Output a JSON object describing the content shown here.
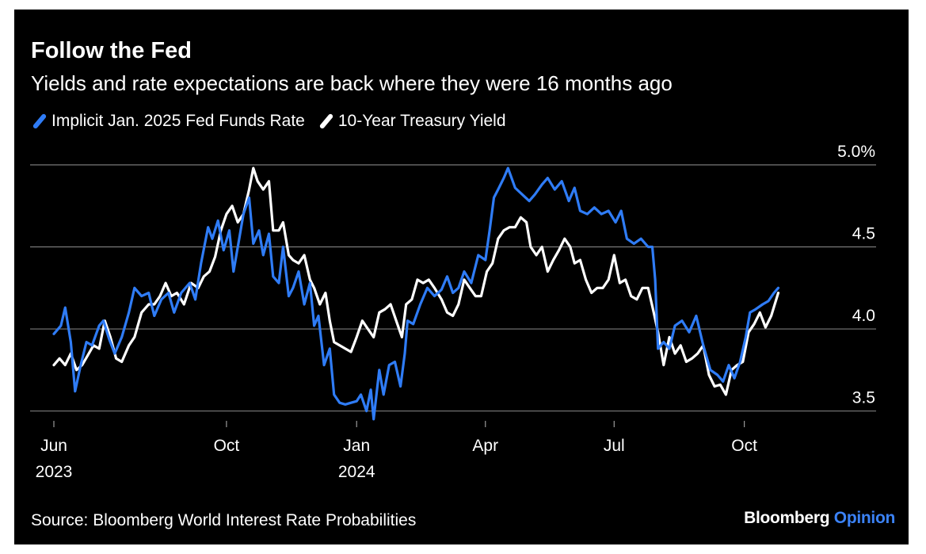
{
  "chart_data": {
    "type": "line",
    "title": "Follow the Fed",
    "subtitle": "Yields and rate expectations are back where they were 16 months ago",
    "source": "Source: Bloomberg World Interest Rate Probabilities",
    "brand": {
      "main": "Bloomberg",
      "accent": "Opinion"
    },
    "ylim": [
      3.44,
      5.0
    ],
    "y_ticks": [
      {
        "value": 5.0,
        "label": "5.0%"
      },
      {
        "value": 4.5,
        "label": "4.5"
      },
      {
        "value": 4.0,
        "label": "4.0"
      },
      {
        "value": 3.5,
        "label": "3.5"
      }
    ],
    "x_range": [
      "2023-06-01",
      "2024-11-15"
    ],
    "x_ticks": [
      {
        "date": "2023-06-01",
        "label": "Jun",
        "year": "2023"
      },
      {
        "date": "2023-10-01",
        "label": "Oct",
        "year": ""
      },
      {
        "date": "2024-01-01",
        "label": "Jan",
        "year": "2024"
      },
      {
        "date": "2024-04-01",
        "label": "Apr",
        "year": ""
      },
      {
        "date": "2024-07-01",
        "label": "Jul",
        "year": ""
      },
      {
        "date": "2024-10-01",
        "label": "Oct",
        "year": ""
      }
    ],
    "legend_position": "top-left",
    "grid": "horizontal",
    "series": [
      {
        "name": "Implicit Jan. 2025 Fed Funds Rate",
        "color": "#2f7cf6",
        "points": [
          [
            "2023-06-01",
            3.97
          ],
          [
            "2023-06-06",
            4.02
          ],
          [
            "2023-06-09",
            4.13
          ],
          [
            "2023-06-13",
            3.92
          ],
          [
            "2023-06-16",
            3.62
          ],
          [
            "2023-06-20",
            3.78
          ],
          [
            "2023-06-24",
            3.92
          ],
          [
            "2023-06-28",
            3.9
          ],
          [
            "2023-07-03",
            4.02
          ],
          [
            "2023-07-06",
            4.05
          ],
          [
            "2023-07-10",
            3.94
          ],
          [
            "2023-07-14",
            3.85
          ],
          [
            "2023-07-19",
            3.95
          ],
          [
            "2023-07-24",
            4.1
          ],
          [
            "2023-07-28",
            4.25
          ],
          [
            "2023-08-02",
            4.2
          ],
          [
            "2023-08-07",
            4.22
          ],
          [
            "2023-08-11",
            4.08
          ],
          [
            "2023-08-16",
            4.18
          ],
          [
            "2023-08-21",
            4.22
          ],
          [
            "2023-08-25",
            4.1
          ],
          [
            "2023-08-30",
            4.22
          ],
          [
            "2023-09-05",
            4.28
          ],
          [
            "2023-09-09",
            4.18
          ],
          [
            "2023-09-13",
            4.4
          ],
          [
            "2023-09-18",
            4.62
          ],
          [
            "2023-09-21",
            4.55
          ],
          [
            "2023-09-25",
            4.66
          ],
          [
            "2023-09-29",
            4.48
          ],
          [
            "2023-10-03",
            4.6
          ],
          [
            "2023-10-06",
            4.35
          ],
          [
            "2023-10-10",
            4.55
          ],
          [
            "2023-10-13",
            4.7
          ],
          [
            "2023-10-17",
            4.8
          ],
          [
            "2023-10-20",
            4.52
          ],
          [
            "2023-10-24",
            4.6
          ],
          [
            "2023-10-27",
            4.45
          ],
          [
            "2023-10-31",
            4.58
          ],
          [
            "2023-11-03",
            4.32
          ],
          [
            "2023-11-07",
            4.28
          ],
          [
            "2023-11-10",
            4.5
          ],
          [
            "2023-11-14",
            4.2
          ],
          [
            "2023-11-17",
            4.25
          ],
          [
            "2023-11-21",
            4.35
          ],
          [
            "2023-11-25",
            4.15
          ],
          [
            "2023-11-29",
            4.28
          ],
          [
            "2023-12-02",
            4.02
          ],
          [
            "2023-12-05",
            4.08
          ],
          [
            "2023-12-09",
            3.78
          ],
          [
            "2023-12-13",
            3.88
          ],
          [
            "2023-12-16",
            3.6
          ],
          [
            "2023-12-20",
            3.55
          ],
          [
            "2023-12-24",
            3.54
          ],
          [
            "2023-12-28",
            3.55
          ],
          [
            "2024-01-01",
            3.56
          ],
          [
            "2024-01-04",
            3.6
          ],
          [
            "2024-01-08",
            3.5
          ],
          [
            "2024-01-11",
            3.63
          ],
          [
            "2024-01-13",
            3.45
          ],
          [
            "2024-01-17",
            3.75
          ],
          [
            "2024-01-20",
            3.6
          ],
          [
            "2024-01-24",
            3.78
          ],
          [
            "2024-01-28",
            3.8
          ],
          [
            "2024-02-01",
            3.65
          ],
          [
            "2024-02-04",
            3.85
          ],
          [
            "2024-02-06",
            4.05
          ],
          [
            "2024-02-10",
            4.03
          ],
          [
            "2024-02-15",
            4.15
          ],
          [
            "2024-02-20",
            4.25
          ],
          [
            "2024-02-25",
            4.2
          ],
          [
            "2024-03-01",
            4.24
          ],
          [
            "2024-03-05",
            4.32
          ],
          [
            "2024-03-09",
            4.22
          ],
          [
            "2024-03-13",
            4.25
          ],
          [
            "2024-03-17",
            4.35
          ],
          [
            "2024-03-22",
            4.28
          ],
          [
            "2024-03-27",
            4.45
          ],
          [
            "2024-04-01",
            4.42
          ],
          [
            "2024-04-04",
            4.6
          ],
          [
            "2024-04-07",
            4.8
          ],
          [
            "2024-04-10",
            4.85
          ],
          [
            "2024-04-14",
            4.92
          ],
          [
            "2024-04-17",
            4.98
          ],
          [
            "2024-04-22",
            4.86
          ],
          [
            "2024-04-27",
            4.82
          ],
          [
            "2024-05-02",
            4.78
          ],
          [
            "2024-05-06",
            4.82
          ],
          [
            "2024-05-11",
            4.88
          ],
          [
            "2024-05-15",
            4.92
          ],
          [
            "2024-05-20",
            4.85
          ],
          [
            "2024-05-25",
            4.9
          ],
          [
            "2024-05-30",
            4.78
          ],
          [
            "2024-06-03",
            4.86
          ],
          [
            "2024-06-07",
            4.72
          ],
          [
            "2024-06-12",
            4.7
          ],
          [
            "2024-06-17",
            4.74
          ],
          [
            "2024-06-22",
            4.7
          ],
          [
            "2024-06-27",
            4.72
          ],
          [
            "2024-07-02",
            4.65
          ],
          [
            "2024-07-06",
            4.72
          ],
          [
            "2024-07-10",
            4.55
          ],
          [
            "2024-07-15",
            4.52
          ],
          [
            "2024-07-20",
            4.55
          ],
          [
            "2024-07-25",
            4.5
          ],
          [
            "2024-07-28",
            4.5
          ],
          [
            "2024-07-30",
            4.3
          ],
          [
            "2024-08-01",
            3.88
          ],
          [
            "2024-08-05",
            3.92
          ],
          [
            "2024-08-09",
            3.88
          ],
          [
            "2024-08-13",
            4.02
          ],
          [
            "2024-08-18",
            4.05
          ],
          [
            "2024-08-23",
            3.98
          ],
          [
            "2024-08-28",
            4.08
          ],
          [
            "2024-09-02",
            3.9
          ],
          [
            "2024-09-07",
            3.75
          ],
          [
            "2024-09-12",
            3.72
          ],
          [
            "2024-09-16",
            3.68
          ],
          [
            "2024-09-20",
            3.78
          ],
          [
            "2024-09-24",
            3.7
          ],
          [
            "2024-09-28",
            3.8
          ],
          [
            "2024-10-02",
            3.95
          ],
          [
            "2024-10-05",
            4.1
          ],
          [
            "2024-10-09",
            4.12
          ],
          [
            "2024-10-14",
            4.15
          ],
          [
            "2024-10-18",
            4.17
          ],
          [
            "2024-10-22",
            4.22
          ],
          [
            "2024-10-25",
            4.25
          ]
        ]
      },
      {
        "name": "10-Year Treasury Yield",
        "color": "#ffffff",
        "points": [
          [
            "2023-06-01",
            3.78
          ],
          [
            "2023-06-05",
            3.82
          ],
          [
            "2023-06-09",
            3.78
          ],
          [
            "2023-06-13",
            3.85
          ],
          [
            "2023-06-17",
            3.75
          ],
          [
            "2023-06-21",
            3.78
          ],
          [
            "2023-06-25",
            3.84
          ],
          [
            "2023-06-29",
            3.9
          ],
          [
            "2023-07-03",
            3.88
          ],
          [
            "2023-07-07",
            4.05
          ],
          [
            "2023-07-11",
            3.95
          ],
          [
            "2023-07-15",
            3.82
          ],
          [
            "2023-07-19",
            3.8
          ],
          [
            "2023-07-24",
            3.9
          ],
          [
            "2023-07-28",
            3.95
          ],
          [
            "2023-08-02",
            4.1
          ],
          [
            "2023-08-07",
            4.15
          ],
          [
            "2023-08-11",
            4.15
          ],
          [
            "2023-08-15",
            4.2
          ],
          [
            "2023-08-19",
            4.28
          ],
          [
            "2023-08-23",
            4.2
          ],
          [
            "2023-08-27",
            4.22
          ],
          [
            "2023-09-01",
            4.15
          ],
          [
            "2023-09-06",
            4.28
          ],
          [
            "2023-09-11",
            4.25
          ],
          [
            "2023-09-15",
            4.32
          ],
          [
            "2023-09-19",
            4.35
          ],
          [
            "2023-09-23",
            4.44
          ],
          [
            "2023-09-27",
            4.6
          ],
          [
            "2023-10-01",
            4.7
          ],
          [
            "2023-10-05",
            4.75
          ],
          [
            "2023-10-09",
            4.65
          ],
          [
            "2023-10-13",
            4.7
          ],
          [
            "2023-10-17",
            4.85
          ],
          [
            "2023-10-20",
            4.98
          ],
          [
            "2023-10-23",
            4.9
          ],
          [
            "2023-10-27",
            4.85
          ],
          [
            "2023-10-31",
            4.9
          ],
          [
            "2023-11-03",
            4.6
          ],
          [
            "2023-11-07",
            4.6
          ],
          [
            "2023-11-10",
            4.65
          ],
          [
            "2023-11-14",
            4.45
          ],
          [
            "2023-11-17",
            4.42
          ],
          [
            "2023-11-21",
            4.4
          ],
          [
            "2023-11-25",
            4.45
          ],
          [
            "2023-11-29",
            4.3
          ],
          [
            "2023-12-02",
            4.25
          ],
          [
            "2023-12-06",
            4.15
          ],
          [
            "2023-12-10",
            4.22
          ],
          [
            "2023-12-13",
            4.05
          ],
          [
            "2023-12-16",
            3.92
          ],
          [
            "2023-12-20",
            3.9
          ],
          [
            "2023-12-24",
            3.88
          ],
          [
            "2023-12-28",
            3.86
          ],
          [
            "2024-01-01",
            3.95
          ],
          [
            "2024-01-05",
            4.05
          ],
          [
            "2024-01-09",
            4.0
          ],
          [
            "2024-01-13",
            3.95
          ],
          [
            "2024-01-17",
            4.1
          ],
          [
            "2024-01-21",
            4.12
          ],
          [
            "2024-01-25",
            4.15
          ],
          [
            "2024-01-29",
            4.05
          ],
          [
            "2024-02-02",
            3.95
          ],
          [
            "2024-02-05",
            4.15
          ],
          [
            "2024-02-09",
            4.18
          ],
          [
            "2024-02-13",
            4.3
          ],
          [
            "2024-02-17",
            4.28
          ],
          [
            "2024-02-21",
            4.3
          ],
          [
            "2024-02-25",
            4.25
          ],
          [
            "2024-03-01",
            4.18
          ],
          [
            "2024-03-05",
            4.1
          ],
          [
            "2024-03-09",
            4.08
          ],
          [
            "2024-03-13",
            4.15
          ],
          [
            "2024-03-17",
            4.3
          ],
          [
            "2024-03-21",
            4.25
          ],
          [
            "2024-03-25",
            4.2
          ],
          [
            "2024-03-29",
            4.2
          ],
          [
            "2024-04-02",
            4.35
          ],
          [
            "2024-04-06",
            4.4
          ],
          [
            "2024-04-10",
            4.55
          ],
          [
            "2024-04-14",
            4.6
          ],
          [
            "2024-04-18",
            4.62
          ],
          [
            "2024-04-22",
            4.62
          ],
          [
            "2024-04-26",
            4.68
          ],
          [
            "2024-04-30",
            4.65
          ],
          [
            "2024-05-03",
            4.5
          ],
          [
            "2024-05-07",
            4.45
          ],
          [
            "2024-05-11",
            4.5
          ],
          [
            "2024-05-15",
            4.35
          ],
          [
            "2024-05-19",
            4.42
          ],
          [
            "2024-05-23",
            4.48
          ],
          [
            "2024-05-27",
            4.55
          ],
          [
            "2024-05-31",
            4.5
          ],
          [
            "2024-06-03",
            4.4
          ],
          [
            "2024-06-07",
            4.42
          ],
          [
            "2024-06-11",
            4.3
          ],
          [
            "2024-06-15",
            4.22
          ],
          [
            "2024-06-19",
            4.25
          ],
          [
            "2024-06-23",
            4.25
          ],
          [
            "2024-06-27",
            4.3
          ],
          [
            "2024-07-01",
            4.45
          ],
          [
            "2024-07-05",
            4.28
          ],
          [
            "2024-07-09",
            4.3
          ],
          [
            "2024-07-13",
            4.2
          ],
          [
            "2024-07-17",
            4.18
          ],
          [
            "2024-07-21",
            4.25
          ],
          [
            "2024-07-25",
            4.25
          ],
          [
            "2024-07-29",
            4.1
          ],
          [
            "2024-08-01",
            3.98
          ],
          [
            "2024-08-05",
            3.78
          ],
          [
            "2024-08-09",
            3.95
          ],
          [
            "2024-08-13",
            3.85
          ],
          [
            "2024-08-17",
            3.9
          ],
          [
            "2024-08-21",
            3.8
          ],
          [
            "2024-08-25",
            3.82
          ],
          [
            "2024-08-29",
            3.85
          ],
          [
            "2024-09-02",
            3.9
          ],
          [
            "2024-09-06",
            3.72
          ],
          [
            "2024-09-10",
            3.65
          ],
          [
            "2024-09-14",
            3.66
          ],
          [
            "2024-09-18",
            3.6
          ],
          [
            "2024-09-22",
            3.75
          ],
          [
            "2024-09-26",
            3.78
          ],
          [
            "2024-09-30",
            3.8
          ],
          [
            "2024-10-04",
            3.98
          ],
          [
            "2024-10-08",
            4.03
          ],
          [
            "2024-10-12",
            4.1
          ],
          [
            "2024-10-16",
            4.01
          ],
          [
            "2024-10-20",
            4.08
          ],
          [
            "2024-10-25",
            4.22
          ]
        ]
      }
    ]
  }
}
